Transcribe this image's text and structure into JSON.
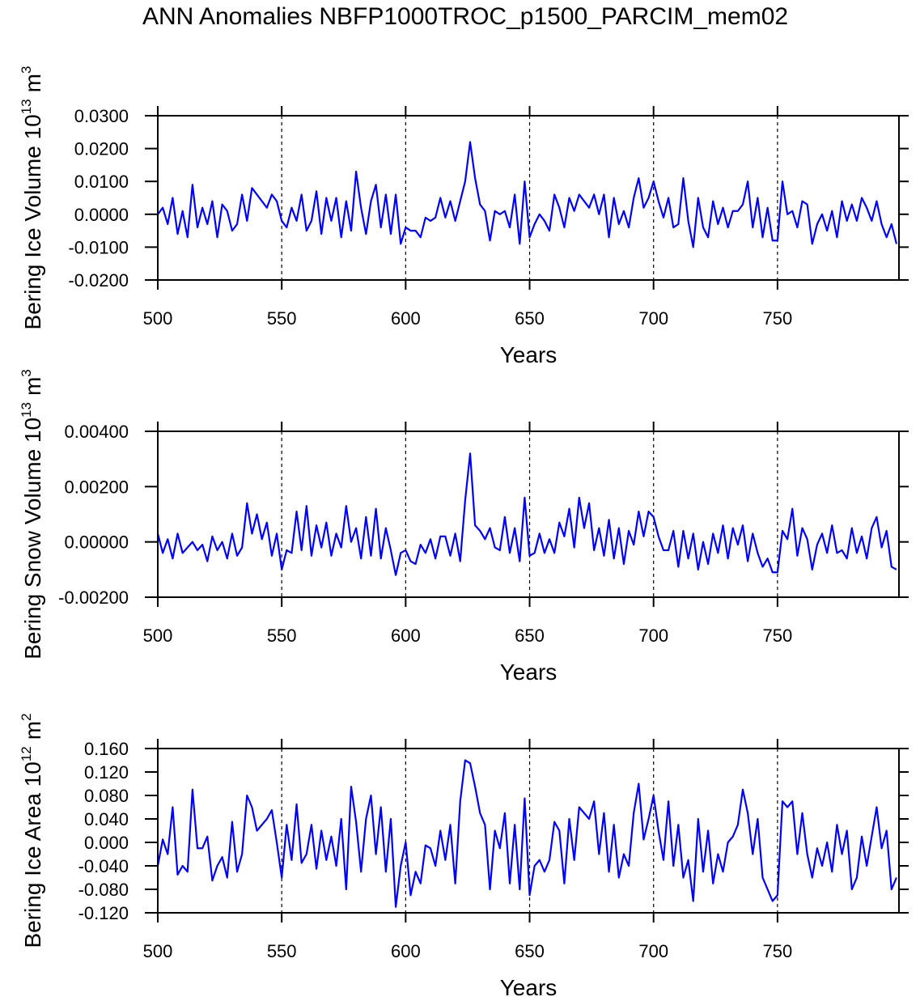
{
  "chart_data": [
    {
      "type": "line",
      "title": "ANN Anomalies NBFP1000TROC_p1500_PARCIM_mem02",
      "ylabel": [
        "Bering Ice Volume 10",
        "13",
        "m",
        "3"
      ],
      "xlabel": "Years",
      "xlim": [
        500,
        799
      ],
      "xticks": [
        500,
        550,
        600,
        650,
        700,
        750
      ],
      "xgrid": true,
      "ylim": [
        -0.02,
        0.03
      ],
      "yticks": [
        {
          "value": -0.02,
          "label": "-0.0200"
        },
        {
          "value": -0.01,
          "label": "-0.0100"
        },
        {
          "value": 0,
          "label": "0.0000"
        },
        {
          "value": 0.01,
          "label": "0.0100"
        },
        {
          "value": 0.02,
          "label": "0.0200"
        },
        {
          "value": 0.03,
          "label": "0.0300"
        }
      ],
      "x": [
        500,
        502,
        504,
        506,
        508,
        510,
        512,
        514,
        516,
        518,
        520,
        522,
        524,
        526,
        528,
        530,
        532,
        534,
        536,
        538,
        540,
        542,
        544,
        546,
        548,
        550,
        552,
        554,
        556,
        558,
        560,
        562,
        564,
        566,
        568,
        570,
        572,
        574,
        576,
        578,
        580,
        582,
        584,
        586,
        588,
        590,
        592,
        594,
        596,
        598,
        600,
        602,
        604,
        606,
        608,
        610,
        612,
        614,
        616,
        618,
        620,
        622,
        624,
        626,
        628,
        630,
        632,
        634,
        636,
        638,
        640,
        642,
        644,
        646,
        648,
        650,
        652,
        654,
        656,
        658,
        660,
        662,
        664,
        666,
        668,
        670,
        672,
        674,
        676,
        678,
        680,
        682,
        684,
        686,
        688,
        690,
        692,
        694,
        696,
        698,
        700,
        702,
        704,
        706,
        708,
        710,
        712,
        714,
        716,
        718,
        720,
        722,
        724,
        726,
        728,
        730,
        732,
        734,
        736,
        738,
        740,
        742,
        744,
        746,
        748,
        750,
        752,
        754,
        756,
        758,
        760,
        762,
        764,
        766,
        768,
        770,
        772,
        774,
        776,
        778,
        780,
        782,
        784,
        786,
        788,
        790,
        792,
        794,
        796,
        798
      ],
      "series": [
        {
          "color": "#0000ff",
          "values": [
            0.0,
            0.002,
            -0.003,
            0.005,
            -0.006,
            0.001,
            -0.007,
            0.009,
            -0.004,
            0.002,
            -0.003,
            0.004,
            -0.007,
            0.003,
            0.001,
            -0.005,
            -0.003,
            0.006,
            -0.002,
            0.008,
            0.006,
            0.004,
            0.002,
            0.006,
            0.004,
            -0.002,
            -0.004,
            0.002,
            -0.002,
            0.006,
            -0.005,
            -0.002,
            0.007,
            -0.006,
            0.005,
            -0.002,
            0.005,
            -0.007,
            0.004,
            -0.005,
            0.013,
            0.002,
            -0.006,
            0.004,
            0.009,
            -0.004,
            0.006,
            -0.006,
            0.006,
            -0.009,
            -0.004,
            -0.005,
            -0.005,
            -0.007,
            -0.001,
            -0.002,
            -0.001,
            0.005,
            -0.001,
            0.004,
            -0.002,
            0.004,
            0.01,
            0.022,
            0.011,
            0.003,
            0.001,
            -0.008,
            0.001,
            0.0,
            0.001,
            -0.004,
            0.006,
            -0.009,
            0.01,
            -0.007,
            -0.003,
            0.0,
            -0.002,
            -0.005,
            0.006,
            0.002,
            -0.004,
            0.005,
            0.001,
            0.006,
            0.004,
            0.002,
            0.006,
            0.0,
            0.006,
            -0.007,
            0.005,
            -0.003,
            0.001,
            -0.004,
            0.005,
            0.011,
            0.002,
            0.005,
            0.01,
            0.004,
            -0.001,
            0.005,
            -0.004,
            -0.003,
            0.011,
            -0.002,
            -0.01,
            0.005,
            -0.004,
            -0.007,
            0.004,
            -0.003,
            0.002,
            -0.004,
            0.001,
            0.001,
            0.003,
            0.01,
            -0.004,
            0.005,
            -0.007,
            0.002,
            -0.008,
            -0.008,
            0.01,
            0.0,
            0.001,
            -0.004,
            0.004,
            0.003,
            -0.009,
            -0.003,
            0.0,
            -0.005,
            0.001,
            -0.007,
            0.004,
            -0.002,
            0.003,
            -0.002,
            0.005,
            0.002,
            -0.002,
            0.004,
            -0.003,
            -0.007,
            -0.003,
            -0.009
          ]
        }
      ]
    },
    {
      "type": "line",
      "ylabel": [
        "Bering Snow Volume 10",
        "13",
        "m",
        "3"
      ],
      "xlabel": "Years",
      "xlim": [
        500,
        799
      ],
      "xticks": [
        500,
        550,
        600,
        650,
        700,
        750
      ],
      "xgrid": true,
      "ylim": [
        -0.002,
        0.004
      ],
      "yticks": [
        {
          "value": -0.002,
          "label": "-0.00200"
        },
        {
          "value": 0,
          "label": "0.00000"
        },
        {
          "value": 0.002,
          "label": "0.00200"
        },
        {
          "value": 0.004,
          "label": "0.00400"
        }
      ],
      "x": [
        500,
        502,
        504,
        506,
        508,
        510,
        512,
        514,
        516,
        518,
        520,
        522,
        524,
        526,
        528,
        530,
        532,
        534,
        536,
        538,
        540,
        542,
        544,
        546,
        548,
        550,
        552,
        554,
        556,
        558,
        560,
        562,
        564,
        566,
        568,
        570,
        572,
        574,
        576,
        578,
        580,
        582,
        584,
        586,
        588,
        590,
        592,
        594,
        596,
        598,
        600,
        602,
        604,
        606,
        608,
        610,
        612,
        614,
        616,
        618,
        620,
        622,
        624,
        626,
        628,
        630,
        632,
        634,
        636,
        638,
        640,
        642,
        644,
        646,
        648,
        650,
        652,
        654,
        656,
        658,
        660,
        662,
        664,
        666,
        668,
        670,
        672,
        674,
        676,
        678,
        680,
        682,
        684,
        686,
        688,
        690,
        692,
        694,
        696,
        698,
        700,
        702,
        704,
        706,
        708,
        710,
        712,
        714,
        716,
        718,
        720,
        722,
        724,
        726,
        728,
        730,
        732,
        734,
        736,
        738,
        740,
        742,
        744,
        746,
        748,
        750,
        752,
        754,
        756,
        758,
        760,
        762,
        764,
        766,
        768,
        770,
        772,
        774,
        776,
        778,
        780,
        782,
        784,
        786,
        788,
        790,
        792,
        794,
        796,
        798
      ],
      "series": [
        {
          "color": "#0000ff",
          "values": [
            0.0003,
            -0.0004,
            0.0001,
            -0.0006,
            0.0003,
            -0.0004,
            -0.0002,
            0.0,
            -0.0003,
            -0.0001,
            -0.0007,
            0.0002,
            -0.0003,
            0.0,
            -0.0006,
            0.0003,
            -0.0005,
            -0.0002,
            0.0014,
            0.0003,
            0.001,
            0.0001,
            0.0007,
            -0.0005,
            0.0003,
            -0.001,
            -0.0003,
            -0.0004,
            0.0011,
            -0.0003,
            0.0013,
            -0.0005,
            0.0006,
            -0.0002,
            0.0007,
            -0.0005,
            0.0003,
            -0.0002,
            0.0013,
            0.0,
            0.0005,
            -0.0006,
            0.0009,
            -0.0005,
            0.0012,
            -0.0006,
            0.0005,
            -0.0003,
            -0.0012,
            -0.0004,
            -0.0003,
            -0.0007,
            -0.0008,
            -0.0001,
            -0.0004,
            0.0001,
            -0.0006,
            0.0002,
            0.0002,
            -0.0005,
            0.0003,
            -0.0007,
            0.0015,
            0.0032,
            0.0006,
            0.0004,
            0.0001,
            0.0005,
            -0.0002,
            -0.0003,
            0.0009,
            -0.0004,
            0.0005,
            -0.0007,
            0.0016,
            -0.0005,
            -0.0004,
            0.0003,
            -0.0004,
            0.0001,
            -0.0004,
            0.0007,
            0.0002,
            0.0012,
            -0.0002,
            0.0016,
            0.0005,
            0.0014,
            -0.0003,
            0.0005,
            -0.0005,
            0.0008,
            -0.0006,
            0.0005,
            -0.0008,
            0.0004,
            -0.0001,
            0.0011,
            0.0002,
            0.0011,
            0.0009,
            0.0002,
            -0.0003,
            -0.0003,
            0.0004,
            -0.0009,
            0.0004,
            -0.0006,
            0.0003,
            -0.001,
            0.0,
            -0.0008,
            0.0003,
            -0.0004,
            0.0006,
            -0.0006,
            0.0005,
            -0.0001,
            0.0006,
            -0.0007,
            0.0003,
            -0.0004,
            -0.0009,
            -0.0006,
            -0.0011,
            -0.0011,
            0.0004,
            0.0001,
            0.0012,
            -0.0005,
            0.0005,
            0.0001,
            -0.001,
            -0.0001,
            0.0003,
            -0.0004,
            0.0006,
            -0.0004,
            -0.0003,
            -0.0006,
            0.0005,
            -0.0004,
            0.0002,
            -0.0006,
            0.0005,
            0.0009,
            -0.0002,
            0.0004,
            -0.0009,
            -0.001
          ]
        }
      ]
    },
    {
      "type": "line",
      "ylabel": [
        "Bering Ice Area 10",
        "12",
        "m",
        "2"
      ],
      "xlabel": "Years",
      "xlim": [
        500,
        799
      ],
      "xticks": [
        500,
        550,
        600,
        650,
        700,
        750
      ],
      "xgrid": true,
      "ylim": [
        -0.12,
        0.16
      ],
      "yticks": [
        {
          "value": -0.12,
          "label": "-0.120"
        },
        {
          "value": -0.08,
          "label": "-0.080"
        },
        {
          "value": -0.04,
          "label": "-0.040"
        },
        {
          "value": 0,
          "label": "0.000"
        },
        {
          "value": 0.04,
          "label": "0.040"
        },
        {
          "value": 0.08,
          "label": "0.080"
        },
        {
          "value": 0.12,
          "label": "0.120"
        },
        {
          "value": 0.16,
          "label": "0.160"
        }
      ],
      "x": [
        500,
        502,
        504,
        506,
        508,
        510,
        512,
        514,
        516,
        518,
        520,
        522,
        524,
        526,
        528,
        530,
        532,
        534,
        536,
        538,
        540,
        542,
        544,
        546,
        548,
        550,
        552,
        554,
        556,
        558,
        560,
        562,
        564,
        566,
        568,
        570,
        572,
        574,
        576,
        578,
        580,
        582,
        584,
        586,
        588,
        590,
        592,
        594,
        596,
        598,
        600,
        602,
        604,
        606,
        608,
        610,
        612,
        614,
        616,
        618,
        620,
        622,
        624,
        626,
        628,
        630,
        632,
        634,
        636,
        638,
        640,
        642,
        644,
        646,
        648,
        650,
        652,
        654,
        656,
        658,
        660,
        662,
        664,
        666,
        668,
        670,
        672,
        674,
        676,
        678,
        680,
        682,
        684,
        686,
        688,
        690,
        692,
        694,
        696,
        698,
        700,
        702,
        704,
        706,
        708,
        710,
        712,
        714,
        716,
        718,
        720,
        722,
        724,
        726,
        728,
        730,
        732,
        734,
        736,
        738,
        740,
        742,
        744,
        746,
        748,
        750,
        752,
        754,
        756,
        758,
        760,
        762,
        764,
        766,
        768,
        770,
        772,
        774,
        776,
        778,
        780,
        782,
        784,
        786,
        788,
        790,
        792,
        794,
        796,
        798
      ],
      "series": [
        {
          "color": "#0000ff",
          "values": [
            -0.04,
            0.005,
            -0.02,
            0.06,
            -0.055,
            -0.04,
            -0.05,
            0.09,
            -0.01,
            -0.01,
            0.01,
            -0.065,
            -0.04,
            -0.025,
            -0.06,
            0.035,
            -0.05,
            -0.02,
            0.08,
            0.06,
            0.02,
            0.03,
            0.04,
            0.055,
            0.0,
            -0.06,
            0.03,
            -0.03,
            0.065,
            -0.035,
            -0.02,
            0.03,
            -0.045,
            0.02,
            -0.03,
            0.01,
            -0.04,
            0.04,
            -0.08,
            0.095,
            0.035,
            -0.05,
            0.04,
            0.08,
            -0.02,
            0.06,
            -0.05,
            0.04,
            -0.11,
            -0.04,
            0.0,
            -0.09,
            -0.05,
            -0.07,
            -0.005,
            -0.01,
            -0.04,
            0.02,
            -0.03,
            0.03,
            -0.07,
            0.07,
            0.14,
            0.135,
            0.095,
            0.05,
            0.03,
            -0.08,
            0.02,
            -0.01,
            0.05,
            -0.07,
            0.03,
            -0.08,
            0.075,
            -0.09,
            -0.04,
            -0.03,
            -0.05,
            -0.03,
            0.035,
            0.02,
            -0.07,
            0.04,
            -0.03,
            0.06,
            0.05,
            0.04,
            0.07,
            -0.02,
            0.05,
            -0.05,
            0.03,
            -0.06,
            -0.02,
            -0.04,
            0.05,
            0.1,
            0.005,
            0.04,
            0.08,
            0.02,
            -0.03,
            0.07,
            -0.04,
            0.03,
            -0.06,
            -0.03,
            -0.1,
            0.04,
            -0.05,
            0.02,
            -0.07,
            -0.02,
            -0.05,
            0.0,
            0.01,
            0.03,
            0.09,
            0.05,
            -0.02,
            0.04,
            -0.06,
            -0.08,
            -0.1,
            -0.09,
            0.07,
            0.06,
            0.07,
            -0.02,
            0.05,
            -0.02,
            -0.06,
            -0.01,
            -0.04,
            0.0,
            -0.05,
            0.03,
            -0.02,
            0.02,
            -0.08,
            -0.06,
            0.01,
            -0.04,
            0.01,
            0.06,
            -0.01,
            0.02,
            -0.08,
            -0.06
          ]
        }
      ]
    }
  ]
}
